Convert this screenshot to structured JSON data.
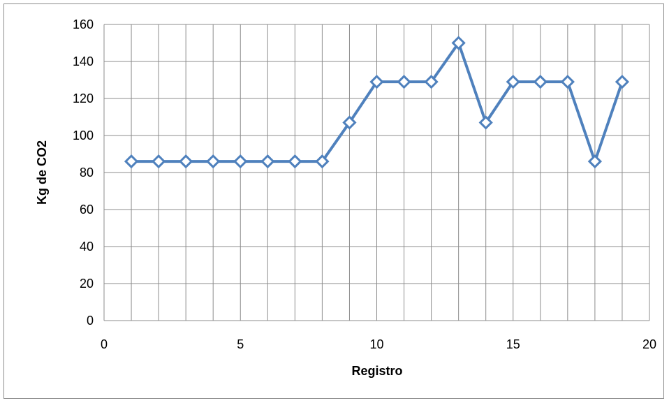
{
  "chart_data": {
    "type": "line",
    "title": "",
    "xlabel": "Registro",
    "ylabel": "Kg de CO2",
    "xlim": [
      0,
      20
    ],
    "ylim": [
      0,
      160
    ],
    "x_ticks": [
      0,
      5,
      10,
      15,
      20
    ],
    "y_ticks": [
      0,
      20,
      40,
      60,
      80,
      100,
      120,
      140,
      160
    ],
    "grid": true,
    "legend": "none",
    "series": [
      {
        "marker": "diamond-open",
        "color": "#4f81bd",
        "x": [
          1,
          2,
          3,
          4,
          5,
          6,
          7,
          8,
          9,
          10,
          11,
          12,
          13,
          14,
          15,
          16,
          17,
          18,
          19
        ],
        "y": [
          86,
          86,
          86,
          86,
          86,
          86,
          86,
          86,
          107,
          129,
          129,
          129,
          150,
          107,
          129,
          129,
          129,
          86,
          129
        ]
      }
    ]
  }
}
